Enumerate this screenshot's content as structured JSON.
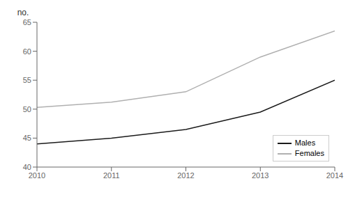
{
  "chart_data": {
    "type": "line",
    "ylabel": "no.",
    "x": [
      2010,
      2011,
      2012,
      2013,
      2014
    ],
    "series": [
      {
        "name": "Males",
        "color": "#1a1a1a",
        "values": [
          44.0,
          45.0,
          46.5,
          49.5,
          55.0
        ]
      },
      {
        "name": "Females",
        "color": "#b0b0b0",
        "values": [
          50.3,
          51.2,
          53.0,
          59.0,
          63.5
        ]
      }
    ],
    "xlim": [
      2010,
      2014
    ],
    "ylim": [
      40,
      65
    ],
    "xticks": [
      2010,
      2011,
      2012,
      2013,
      2014
    ],
    "yticks": [
      40,
      45,
      50,
      55,
      60,
      65
    ],
    "grid": false,
    "legend": "lower right"
  }
}
